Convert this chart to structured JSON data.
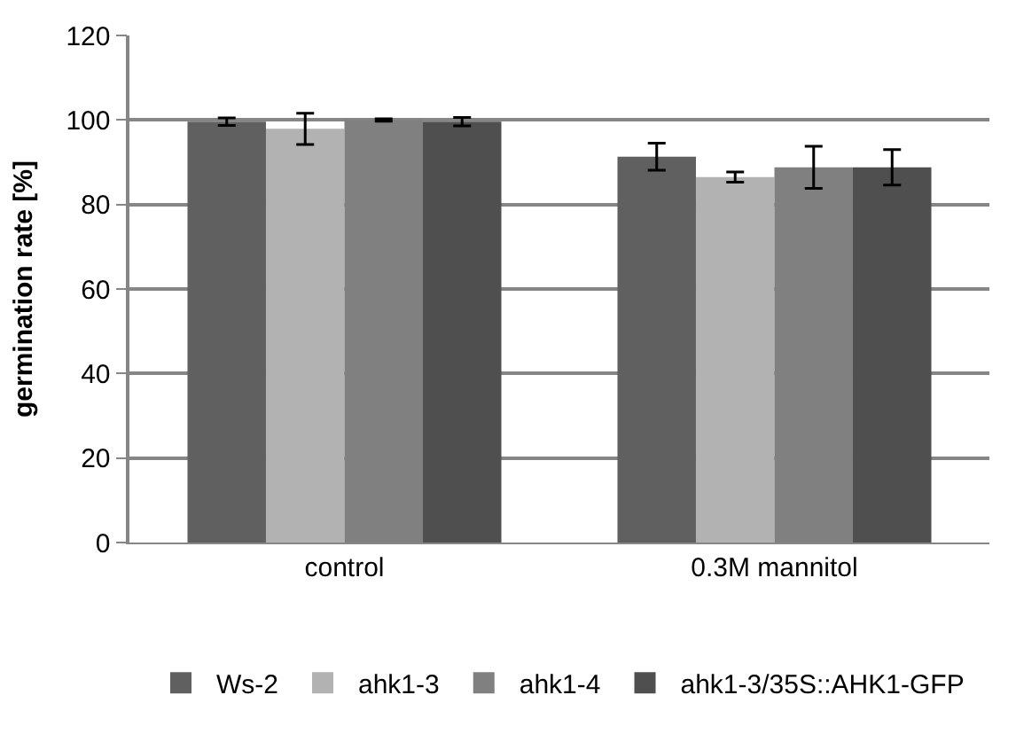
{
  "chart_data": {
    "type": "bar",
    "ylabel": "germination rate [%]",
    "categories": [
      "control",
      "0.3M mannitol"
    ],
    "series": [
      {
        "name": "Ws-2",
        "color": "#606060",
        "values": [
          99.6,
          91.3
        ],
        "errors": [
          0.9,
          3.2
        ]
      },
      {
        "name": "ahk1-3",
        "color": "#b2b2b2",
        "values": [
          97.9,
          86.5
        ],
        "errors": [
          3.7,
          1.2
        ]
      },
      {
        "name": "ahk1-4",
        "color": "#808080",
        "values": [
          100,
          88.8
        ],
        "errors": [
          0.3,
          5
        ]
      },
      {
        "name": "ahk1-3/35S::AHK1-GFP",
        "color": "#4f4f4f",
        "values": [
          99.6,
          88.8
        ],
        "errors": [
          1,
          4.2
        ]
      }
    ],
    "ylim": [
      0,
      120
    ],
    "yticks": [
      0,
      20,
      40,
      60,
      80,
      100,
      120
    ],
    "grid": "y",
    "legend": "bottom"
  }
}
